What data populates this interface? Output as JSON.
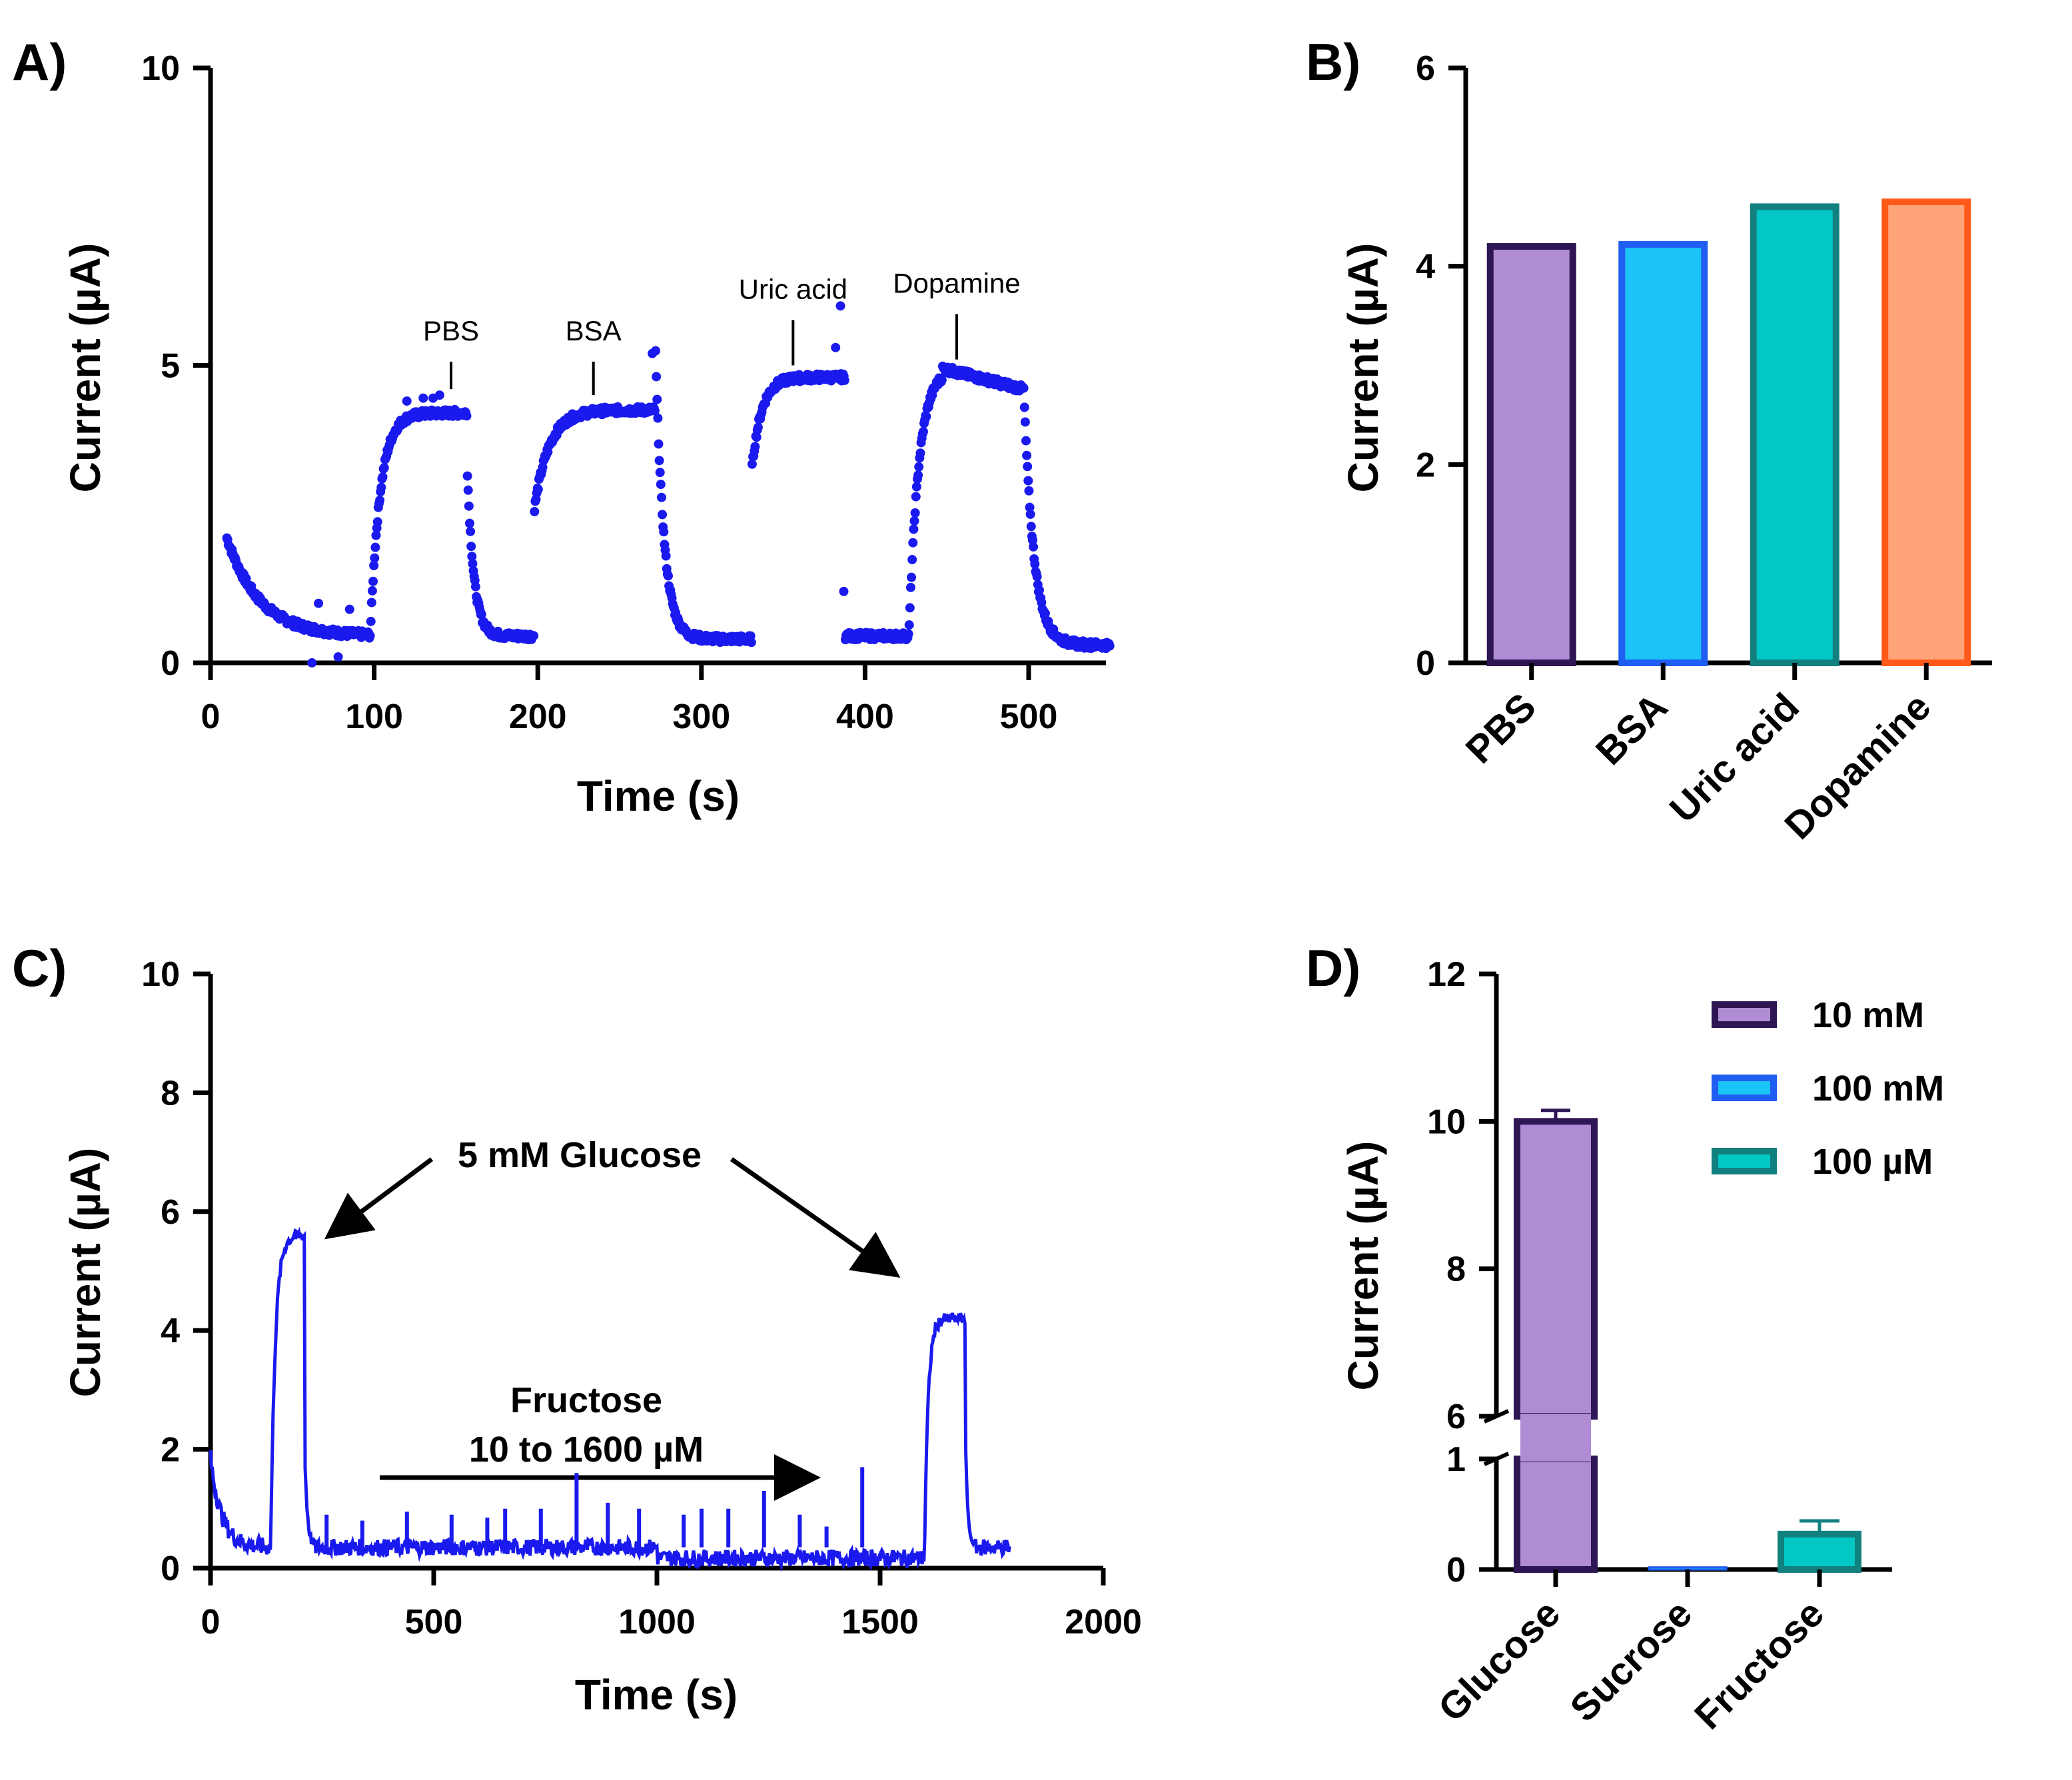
{
  "chart_data": [
    {
      "panel": "A)",
      "type": "scatter",
      "xlabel": "Time (s)",
      "ylabel": "Current (µA)",
      "xlim": [
        0,
        550
      ],
      "ylim": [
        0,
        10
      ],
      "xticks": [
        "0",
        "100",
        "200",
        "300",
        "400",
        "500"
      ],
      "yticks": [
        "0",
        "5",
        "10"
      ],
      "color": "#1a1aee",
      "annotations": [
        {
          "text": "PBS",
          "x": 147,
          "y_point": 4.6,
          "y_text": 5.6
        },
        {
          "text": "BSA",
          "x": 234,
          "y_point": 4.5,
          "y_text": 5.6
        },
        {
          "text": "Uric acid",
          "x": 356,
          "y_point": 5.0,
          "y_text": 6.3
        },
        {
          "text": "Dopamine",
          "x": 456,
          "y_point": 5.1,
          "y_text": 6.4
        }
      ],
      "segments": [
        {
          "t0": 10,
          "t1": 98,
          "type": "decay",
          "start": 2.1,
          "end": 0.45,
          "tau": 20
        },
        {
          "t0": 98,
          "t1": 157,
          "type": "rise",
          "start": 0.7,
          "end": 4.2,
          "tau": 6
        },
        {
          "t0": 157,
          "t1": 198,
          "type": "decay",
          "start": 3.2,
          "end": 0.45,
          "tau": 4
        },
        {
          "t0": 198,
          "t1": 272,
          "type": "rise",
          "start": 2.6,
          "end": 4.25,
          "tau": 9
        },
        {
          "t0": 272,
          "t1": 331,
          "type": "decay",
          "start": 5.2,
          "end": 0.4,
          "tau": 5
        },
        {
          "t0": 331,
          "t1": 388,
          "type": "rise",
          "start": 3.3,
          "end": 4.8,
          "tau": 6
        },
        {
          "t0": 388,
          "t1": 427,
          "type": "flat",
          "start": 0.45,
          "end": 0.45,
          "tau": 1
        },
        {
          "t0": 427,
          "t1": 497,
          "type": "rise",
          "start": 0.6,
          "end": 4.95,
          "tau": 6
        },
        {
          "t0": 497,
          "t1": 550,
          "type": "decay",
          "start": 4.6,
          "end": 0.3,
          "tau": 6
        }
      ],
      "spikes": [
        {
          "t": 62,
          "v": 0.0
        },
        {
          "t": 66,
          "v": 1.0
        },
        {
          "t": 78,
          "v": 0.1
        },
        {
          "t": 85,
          "v": 0.9
        },
        {
          "t": 270,
          "v": 5.2
        },
        {
          "t": 385,
          "v": 6.0
        },
        {
          "t": 382,
          "v": 5.3
        },
        {
          "t": 387,
          "v": 1.2
        },
        {
          "t": 120,
          "v": 4.4
        },
        {
          "t": 130,
          "v": 4.45
        },
        {
          "t": 136,
          "v": 4.45
        },
        {
          "t": 140,
          "v": 4.5
        }
      ]
    },
    {
      "panel": "B)",
      "type": "bar",
      "ylabel": "Current (µA)",
      "ylim": [
        0,
        6
      ],
      "yticks": [
        "0",
        "2",
        "4",
        "6"
      ],
      "categories": [
        "PBS",
        "BSA",
        "Uric acid",
        "Dopamine"
      ],
      "values": [
        4.2,
        4.22,
        4.6,
        4.65
      ],
      "fills": [
        "#b08cd4",
        "#1cc3f6",
        "#03c7c4",
        "#ffa478"
      ],
      "edges": [
        "#2e1553",
        "#1f5ef0",
        "#138080",
        "#ff5a1a"
      ]
    },
    {
      "panel": "C)",
      "type": "line",
      "xlabel": "Time (s)",
      "ylabel": "Current (µA)",
      "xlim": [
        0,
        2000
      ],
      "ylim": [
        0,
        10
      ],
      "xticks": [
        "0",
        "500",
        "1000",
        "1500",
        "2000"
      ],
      "yticks": [
        "0",
        "2",
        "4",
        "6",
        "8",
        "10"
      ],
      "color": "#1a1aee",
      "annotations": [
        {
          "text": "5 mM Glucose",
          "x": 830,
          "y": 6.95
        },
        {
          "text": "Fructose",
          "x": 850,
          "y": 2.85
        },
        {
          "text": "10 to 1600 µM",
          "x": 850,
          "y": 2.0
        }
      ],
      "pulses": [
        {
          "t_start": 135,
          "t_end": 210,
          "level": 5.6
        },
        {
          "t_start": 1600,
          "t_end": 1690,
          "level": 4.2
        }
      ],
      "baseline": 0.35,
      "spikes_t": [
        260,
        340,
        440,
        540,
        620,
        660,
        740,
        820,
        890,
        960,
        1060,
        1100,
        1160,
        1240,
        1320,
        1380,
        1460
      ],
      "spikes_v": [
        0.9,
        0.8,
        0.95,
        0.9,
        0.85,
        1.0,
        1.0,
        1.6,
        1.1,
        1.0,
        0.9,
        1.0,
        1.0,
        1.3,
        0.9,
        0.7,
        1.7
      ]
    },
    {
      "panel": "D)",
      "type": "bar",
      "ylabel": "Current (µA)",
      "broken_axis": true,
      "upper_ylim": [
        6,
        12
      ],
      "lower_ylim": [
        0,
        1
      ],
      "upper_yticks": [
        "6",
        "8",
        "10",
        "12"
      ],
      "lower_yticks": [
        "0",
        "1"
      ],
      "categories": [
        "Glucose",
        "Sucrose",
        "Fructose"
      ],
      "values": [
        10.0,
        0.02,
        0.32
      ],
      "errors": [
        0.15,
        0.0,
        0.12
      ],
      "series_labels": [
        "10 mM",
        "100 mM",
        "100 µM"
      ],
      "fills": [
        "#b08cd4",
        "#1cc3f6",
        "#03c7c4"
      ],
      "edges": [
        "#2e1553",
        "#1f5ef0",
        "#138080"
      ]
    }
  ]
}
